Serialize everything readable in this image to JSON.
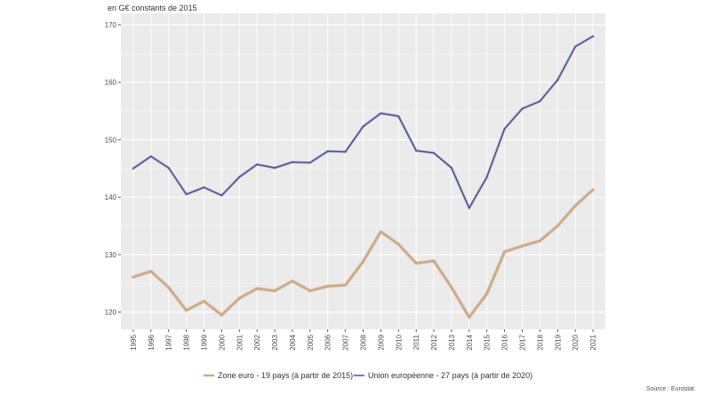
{
  "chart_data": {
    "type": "line",
    "title": "",
    "unit_label": "en G€ constants de 2015",
    "source": "Source : Eurostat",
    "x": [
      "1995",
      "1996",
      "1997",
      "1998",
      "1999",
      "2000",
      "2001",
      "2002",
      "2003",
      "2004",
      "2005",
      "2006",
      "2007",
      "2008",
      "2009",
      "2010",
      "2011",
      "2012",
      "2013",
      "2014",
      "2015",
      "2016",
      "2017",
      "2018",
      "2019",
      "2020",
      "2021"
    ],
    "ylim": [
      117,
      172
    ],
    "yticks": [
      120,
      130,
      140,
      150,
      160,
      170
    ],
    "yticks_labels": [
      "120",
      "130",
      "140",
      "150",
      "160",
      "170"
    ],
    "grid": true,
    "legend_position": "bottom",
    "series": [
      {
        "name": "Zone euro - 19 pays (à partir de 2015)",
        "color": "#c8a987",
        "values": [
          126.1,
          127.1,
          124.3,
          120.3,
          121.9,
          119.5,
          122.4,
          124.1,
          123.7,
          125.4,
          123.7,
          124.5,
          124.7,
          128.8,
          134.0,
          131.8,
          128.5,
          128.9,
          124.3,
          119.1,
          123.2,
          130.5,
          131.5,
          132.4,
          135.0,
          138.5,
          141.3
        ]
      },
      {
        "name": "Union européenne - 27 pays (à partir de 2020)",
        "color": "#4d4f8c",
        "values": [
          145.0,
          147.1,
          145.1,
          140.5,
          141.7,
          140.3,
          143.5,
          145.7,
          145.1,
          146.1,
          146.0,
          148.0,
          147.9,
          152.3,
          154.6,
          154.1,
          148.1,
          147.7,
          145.1,
          138.1,
          143.5,
          151.9,
          155.4,
          156.7,
          160.4,
          166.2,
          168.0
        ]
      }
    ]
  }
}
